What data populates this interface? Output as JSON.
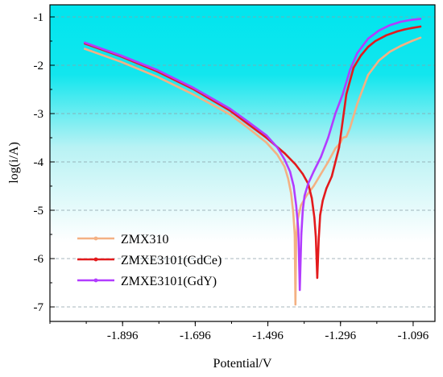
{
  "chart_data": {
    "type": "line",
    "xlabel": "Potential/V",
    "ylabel": "log(i/A)",
    "xlim": [
      -2.096,
      -1.036
    ],
    "ylim": [
      -7.3,
      -0.75
    ],
    "x_ticks": [
      -1.896,
      -1.696,
      -1.496,
      -1.296,
      -1.096
    ],
    "x_tick_labels": [
      "-1.896",
      "-1.696",
      "-1.496",
      "-1.296",
      "-1.096"
    ],
    "y_ticks": [
      -1,
      -2,
      -3,
      -4,
      -5,
      -6,
      -7
    ],
    "y_tick_labels": [
      "-1",
      "-2",
      "-3",
      "-4",
      "-5",
      "-6",
      "-7"
    ],
    "grid": true,
    "background": "gradient: cyan (#00e5ee) at top fading to white toward the bottom",
    "legend_position": "bottom-left",
    "series": [
      {
        "name": "ZMX310",
        "color": "#f4b183",
        "x": [
          -2.0,
          -1.9,
          -1.8,
          -1.7,
          -1.6,
          -1.55,
          -1.5,
          -1.47,
          -1.45,
          -1.44,
          -1.432,
          -1.426,
          -1.422,
          -1.42,
          -1.418,
          -1.414,
          -1.405,
          -1.39,
          -1.37,
          -1.35,
          -1.33,
          -1.31,
          -1.296,
          -1.29,
          -1.28,
          -1.27,
          -1.25,
          -1.22,
          -1.19,
          -1.16,
          -1.13,
          -1.1,
          -1.076
        ],
        "y": [
          -1.66,
          -1.93,
          -2.24,
          -2.61,
          -3.02,
          -3.3,
          -3.6,
          -3.85,
          -4.1,
          -4.35,
          -4.65,
          -5.05,
          -5.5,
          -6.95,
          -5.6,
          -5.2,
          -4.9,
          -4.7,
          -4.5,
          -4.25,
          -4.0,
          -3.72,
          -3.6,
          -3.5,
          -3.48,
          -3.3,
          -2.8,
          -2.2,
          -1.9,
          -1.72,
          -1.6,
          -1.5,
          -1.43
        ]
      },
      {
        "name": "ZMXE3101(GdCe)",
        "color": "#e31a1c",
        "x": [
          -2.0,
          -1.9,
          -1.8,
          -1.7,
          -1.6,
          -1.55,
          -1.5,
          -1.45,
          -1.42,
          -1.4,
          -1.385,
          -1.375,
          -1.368,
          -1.364,
          -1.36,
          -1.356,
          -1.352,
          -1.345,
          -1.335,
          -1.32,
          -1.3,
          -1.28,
          -1.26,
          -1.24,
          -1.22,
          -1.2,
          -1.17,
          -1.14,
          -1.12,
          -1.1,
          -1.076
        ],
        "y": [
          -1.55,
          -1.82,
          -2.13,
          -2.5,
          -2.94,
          -3.22,
          -3.5,
          -3.82,
          -4.05,
          -4.25,
          -4.45,
          -4.75,
          -5.15,
          -5.55,
          -6.4,
          -5.6,
          -5.1,
          -4.8,
          -4.55,
          -4.3,
          -3.7,
          -2.6,
          -2.05,
          -1.8,
          -1.62,
          -1.5,
          -1.38,
          -1.3,
          -1.26,
          -1.23,
          -1.2
        ]
      },
      {
        "name": "ZMXE3101(GdY)",
        "color": "#b23cff",
        "x": [
          -2.0,
          -1.9,
          -1.8,
          -1.7,
          -1.6,
          -1.55,
          -1.5,
          -1.47,
          -1.45,
          -1.435,
          -1.425,
          -1.418,
          -1.412,
          -1.408,
          -1.404,
          -1.4,
          -1.395,
          -1.385,
          -1.37,
          -1.35,
          -1.33,
          -1.31,
          -1.29,
          -1.27,
          -1.25,
          -1.22,
          -1.19,
          -1.16,
          -1.13,
          -1.1,
          -1.076
        ],
        "y": [
          -1.53,
          -1.8,
          -2.1,
          -2.47,
          -2.9,
          -3.17,
          -3.45,
          -3.7,
          -3.95,
          -4.2,
          -4.5,
          -4.9,
          -5.4,
          -6.65,
          -5.5,
          -5.0,
          -4.7,
          -4.45,
          -4.2,
          -3.9,
          -3.5,
          -3.0,
          -2.6,
          -2.1,
          -1.75,
          -1.45,
          -1.28,
          -1.17,
          -1.1,
          -1.06,
          -1.04
        ]
      }
    ]
  }
}
